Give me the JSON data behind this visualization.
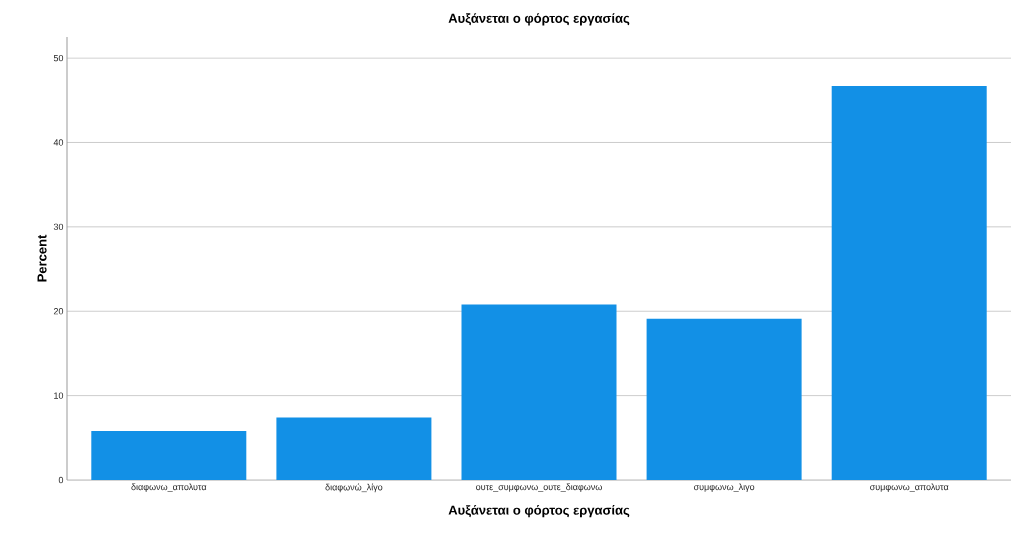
{
  "chart_data": {
    "type": "bar",
    "title": "Αυξάνεται ο φόρτος εργασίας",
    "xlabel": "Αυξάνεται ο φόρτος εργασίας",
    "ylabel": "Percent",
    "categories": [
      "διαφωνω_απολυτα",
      "διαφωνώ_λίγο",
      "ουτε_συμφωνω_ουτε_διαφωνω",
      "συμφωνω_λιγο",
      "συμφωνω_απολυτα"
    ],
    "values": [
      5.8,
      7.4,
      20.8,
      19.1,
      46.7
    ],
    "color": "#1290e6",
    "ylim": [
      0,
      52.5
    ],
    "yticks": [
      0,
      10,
      20,
      30,
      40,
      50
    ],
    "grid": "y"
  }
}
